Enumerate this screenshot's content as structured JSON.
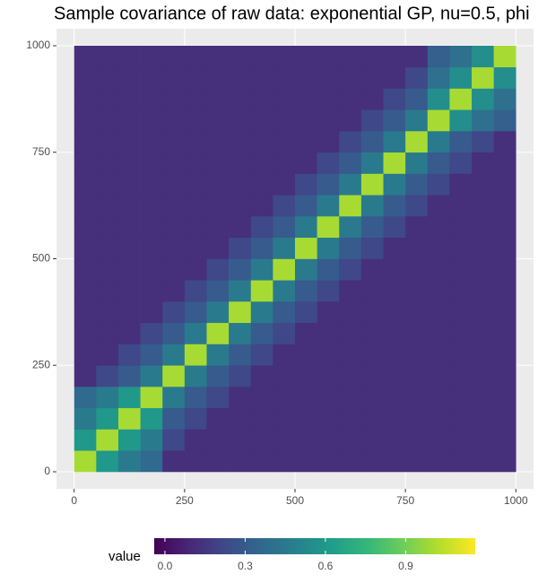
{
  "chart_data": {
    "type": "heatmap",
    "title": "Sample covariance of raw data: exponential GP, nu=0.5, phi",
    "legend_title": "value",
    "x": [
      25,
      75,
      125,
      175,
      225,
      275,
      325,
      375,
      425,
      475,
      525,
      575,
      625,
      675,
      725,
      775,
      825,
      875,
      925,
      975
    ],
    "y": [
      25,
      75,
      125,
      175,
      225,
      275,
      325,
      375,
      425,
      475,
      525,
      575,
      625,
      675,
      725,
      775,
      825,
      875,
      925,
      975
    ],
    "z": [
      [
        1.0,
        0.6,
        0.45,
        0.37,
        0.12,
        0.12,
        0.12,
        0.12,
        0.12,
        0.12,
        0.12,
        0.12,
        0.12,
        0.12,
        0.12,
        0.12,
        0.12,
        0.12,
        0.12,
        0.12
      ],
      [
        0.6,
        1.0,
        0.6,
        0.45,
        0.22,
        0.12,
        0.12,
        0.12,
        0.12,
        0.12,
        0.12,
        0.12,
        0.12,
        0.12,
        0.12,
        0.12,
        0.12,
        0.12,
        0.12,
        0.12
      ],
      [
        0.45,
        0.6,
        1.0,
        0.6,
        0.3,
        0.22,
        0.12,
        0.12,
        0.12,
        0.12,
        0.12,
        0.12,
        0.12,
        0.12,
        0.12,
        0.12,
        0.12,
        0.12,
        0.12,
        0.12
      ],
      [
        0.37,
        0.45,
        0.6,
        1.0,
        0.45,
        0.3,
        0.22,
        0.12,
        0.12,
        0.12,
        0.12,
        0.12,
        0.12,
        0.12,
        0.12,
        0.12,
        0.12,
        0.12,
        0.12,
        0.12
      ],
      [
        0.12,
        0.22,
        0.3,
        0.45,
        1.0,
        0.45,
        0.3,
        0.22,
        0.12,
        0.12,
        0.12,
        0.12,
        0.12,
        0.12,
        0.12,
        0.12,
        0.12,
        0.12,
        0.12,
        0.12
      ],
      [
        0.12,
        0.12,
        0.22,
        0.3,
        0.45,
        1.0,
        0.45,
        0.3,
        0.22,
        0.12,
        0.12,
        0.12,
        0.12,
        0.12,
        0.12,
        0.12,
        0.12,
        0.12,
        0.12,
        0.12
      ],
      [
        0.12,
        0.12,
        0.12,
        0.22,
        0.3,
        0.45,
        1.0,
        0.45,
        0.3,
        0.22,
        0.12,
        0.12,
        0.12,
        0.12,
        0.12,
        0.12,
        0.12,
        0.12,
        0.12,
        0.12
      ],
      [
        0.12,
        0.12,
        0.12,
        0.12,
        0.22,
        0.3,
        0.45,
        1.0,
        0.45,
        0.3,
        0.22,
        0.12,
        0.12,
        0.12,
        0.12,
        0.12,
        0.12,
        0.12,
        0.12,
        0.12
      ],
      [
        0.12,
        0.12,
        0.12,
        0.12,
        0.12,
        0.22,
        0.3,
        0.45,
        1.0,
        0.45,
        0.3,
        0.22,
        0.12,
        0.12,
        0.12,
        0.12,
        0.12,
        0.12,
        0.12,
        0.12
      ],
      [
        0.12,
        0.12,
        0.12,
        0.12,
        0.12,
        0.12,
        0.22,
        0.3,
        0.45,
        1.0,
        0.45,
        0.3,
        0.22,
        0.12,
        0.12,
        0.12,
        0.12,
        0.12,
        0.12,
        0.12
      ],
      [
        0.12,
        0.12,
        0.12,
        0.12,
        0.12,
        0.12,
        0.12,
        0.22,
        0.3,
        0.45,
        1.0,
        0.45,
        0.3,
        0.22,
        0.12,
        0.12,
        0.12,
        0.12,
        0.12,
        0.12
      ],
      [
        0.12,
        0.12,
        0.12,
        0.12,
        0.12,
        0.12,
        0.12,
        0.12,
        0.22,
        0.3,
        0.45,
        1.0,
        0.45,
        0.3,
        0.22,
        0.12,
        0.12,
        0.12,
        0.12,
        0.12
      ],
      [
        0.12,
        0.12,
        0.12,
        0.12,
        0.12,
        0.12,
        0.12,
        0.12,
        0.12,
        0.22,
        0.3,
        0.45,
        1.0,
        0.45,
        0.3,
        0.22,
        0.12,
        0.12,
        0.12,
        0.12
      ],
      [
        0.12,
        0.12,
        0.12,
        0.12,
        0.12,
        0.12,
        0.12,
        0.12,
        0.12,
        0.12,
        0.22,
        0.3,
        0.45,
        1.0,
        0.45,
        0.3,
        0.22,
        0.12,
        0.12,
        0.12
      ],
      [
        0.12,
        0.12,
        0.12,
        0.12,
        0.12,
        0.12,
        0.12,
        0.12,
        0.12,
        0.12,
        0.12,
        0.22,
        0.3,
        0.45,
        1.0,
        0.45,
        0.3,
        0.22,
        0.12,
        0.12
      ],
      [
        0.12,
        0.12,
        0.12,
        0.12,
        0.12,
        0.12,
        0.12,
        0.12,
        0.12,
        0.12,
        0.12,
        0.12,
        0.22,
        0.3,
        0.45,
        1.0,
        0.45,
        0.3,
        0.22,
        0.12
      ],
      [
        0.12,
        0.12,
        0.12,
        0.12,
        0.12,
        0.12,
        0.12,
        0.12,
        0.12,
        0.12,
        0.12,
        0.12,
        0.12,
        0.22,
        0.3,
        0.45,
        1.0,
        0.55,
        0.4,
        0.32
      ],
      [
        0.12,
        0.12,
        0.12,
        0.12,
        0.12,
        0.12,
        0.12,
        0.12,
        0.12,
        0.12,
        0.12,
        0.12,
        0.12,
        0.12,
        0.22,
        0.3,
        0.55,
        1.0,
        0.55,
        0.4
      ],
      [
        0.12,
        0.12,
        0.12,
        0.12,
        0.12,
        0.12,
        0.12,
        0.12,
        0.12,
        0.12,
        0.12,
        0.12,
        0.12,
        0.12,
        0.12,
        0.22,
        0.4,
        0.55,
        1.0,
        0.55
      ],
      [
        0.12,
        0.12,
        0.12,
        0.12,
        0.12,
        0.12,
        0.12,
        0.12,
        0.12,
        0.12,
        0.12,
        0.12,
        0.12,
        0.12,
        0.12,
        0.12,
        0.32,
        0.4,
        0.55,
        1.0
      ]
    ],
    "xlim": [
      -40,
      1040
    ],
    "ylim": [
      -40,
      1040
    ],
    "xticks": [
      0,
      250,
      500,
      750,
      1000
    ],
    "yticks": [
      0,
      250,
      500,
      750,
      1000
    ],
    "colorlim": [
      -0.04,
      1.16
    ],
    "colorticks": [
      {
        "value": 0,
        "label": "0.0"
      },
      0.3,
      0.6,
      0.9
    ],
    "colormap": "viridis",
    "grid": true
  }
}
